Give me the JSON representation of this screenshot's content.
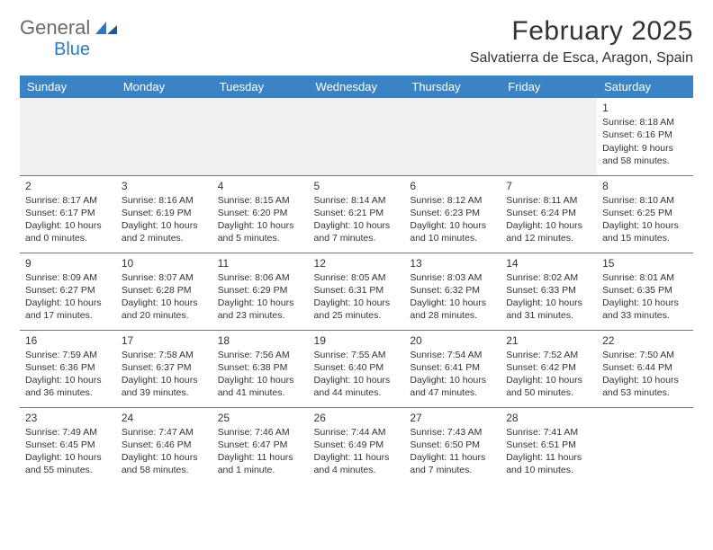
{
  "logo": {
    "text1": "General",
    "text2": "Blue"
  },
  "title": "February 2025",
  "location": "Salvatierra de Esca, Aragon, Spain",
  "colors": {
    "header_bg": "#3a84c6",
    "header_text": "#ffffff",
    "border": "#6b7a87",
    "logo_blue": "#2f78bd",
    "logo_gray": "#6a6a6a",
    "text": "#333333"
  },
  "weekdays": [
    "Sunday",
    "Monday",
    "Tuesday",
    "Wednesday",
    "Thursday",
    "Friday",
    "Saturday"
  ],
  "weeks": [
    [
      null,
      null,
      null,
      null,
      null,
      null,
      {
        "n": "1",
        "sunrise": "Sunrise: 8:18 AM",
        "sunset": "Sunset: 6:16 PM",
        "daylight": "Daylight: 9 hours and 58 minutes."
      }
    ],
    [
      {
        "n": "2",
        "sunrise": "Sunrise: 8:17 AM",
        "sunset": "Sunset: 6:17 PM",
        "daylight": "Daylight: 10 hours and 0 minutes."
      },
      {
        "n": "3",
        "sunrise": "Sunrise: 8:16 AM",
        "sunset": "Sunset: 6:19 PM",
        "daylight": "Daylight: 10 hours and 2 minutes."
      },
      {
        "n": "4",
        "sunrise": "Sunrise: 8:15 AM",
        "sunset": "Sunset: 6:20 PM",
        "daylight": "Daylight: 10 hours and 5 minutes."
      },
      {
        "n": "5",
        "sunrise": "Sunrise: 8:14 AM",
        "sunset": "Sunset: 6:21 PM",
        "daylight": "Daylight: 10 hours and 7 minutes."
      },
      {
        "n": "6",
        "sunrise": "Sunrise: 8:12 AM",
        "sunset": "Sunset: 6:23 PM",
        "daylight": "Daylight: 10 hours and 10 minutes."
      },
      {
        "n": "7",
        "sunrise": "Sunrise: 8:11 AM",
        "sunset": "Sunset: 6:24 PM",
        "daylight": "Daylight: 10 hours and 12 minutes."
      },
      {
        "n": "8",
        "sunrise": "Sunrise: 8:10 AM",
        "sunset": "Sunset: 6:25 PM",
        "daylight": "Daylight: 10 hours and 15 minutes."
      }
    ],
    [
      {
        "n": "9",
        "sunrise": "Sunrise: 8:09 AM",
        "sunset": "Sunset: 6:27 PM",
        "daylight": "Daylight: 10 hours and 17 minutes."
      },
      {
        "n": "10",
        "sunrise": "Sunrise: 8:07 AM",
        "sunset": "Sunset: 6:28 PM",
        "daylight": "Daylight: 10 hours and 20 minutes."
      },
      {
        "n": "11",
        "sunrise": "Sunrise: 8:06 AM",
        "sunset": "Sunset: 6:29 PM",
        "daylight": "Daylight: 10 hours and 23 minutes."
      },
      {
        "n": "12",
        "sunrise": "Sunrise: 8:05 AM",
        "sunset": "Sunset: 6:31 PM",
        "daylight": "Daylight: 10 hours and 25 minutes."
      },
      {
        "n": "13",
        "sunrise": "Sunrise: 8:03 AM",
        "sunset": "Sunset: 6:32 PM",
        "daylight": "Daylight: 10 hours and 28 minutes."
      },
      {
        "n": "14",
        "sunrise": "Sunrise: 8:02 AM",
        "sunset": "Sunset: 6:33 PM",
        "daylight": "Daylight: 10 hours and 31 minutes."
      },
      {
        "n": "15",
        "sunrise": "Sunrise: 8:01 AM",
        "sunset": "Sunset: 6:35 PM",
        "daylight": "Daylight: 10 hours and 33 minutes."
      }
    ],
    [
      {
        "n": "16",
        "sunrise": "Sunrise: 7:59 AM",
        "sunset": "Sunset: 6:36 PM",
        "daylight": "Daylight: 10 hours and 36 minutes."
      },
      {
        "n": "17",
        "sunrise": "Sunrise: 7:58 AM",
        "sunset": "Sunset: 6:37 PM",
        "daylight": "Daylight: 10 hours and 39 minutes."
      },
      {
        "n": "18",
        "sunrise": "Sunrise: 7:56 AM",
        "sunset": "Sunset: 6:38 PM",
        "daylight": "Daylight: 10 hours and 41 minutes."
      },
      {
        "n": "19",
        "sunrise": "Sunrise: 7:55 AM",
        "sunset": "Sunset: 6:40 PM",
        "daylight": "Daylight: 10 hours and 44 minutes."
      },
      {
        "n": "20",
        "sunrise": "Sunrise: 7:54 AM",
        "sunset": "Sunset: 6:41 PM",
        "daylight": "Daylight: 10 hours and 47 minutes."
      },
      {
        "n": "21",
        "sunrise": "Sunrise: 7:52 AM",
        "sunset": "Sunset: 6:42 PM",
        "daylight": "Daylight: 10 hours and 50 minutes."
      },
      {
        "n": "22",
        "sunrise": "Sunrise: 7:50 AM",
        "sunset": "Sunset: 6:44 PM",
        "daylight": "Daylight: 10 hours and 53 minutes."
      }
    ],
    [
      {
        "n": "23",
        "sunrise": "Sunrise: 7:49 AM",
        "sunset": "Sunset: 6:45 PM",
        "daylight": "Daylight: 10 hours and 55 minutes."
      },
      {
        "n": "24",
        "sunrise": "Sunrise: 7:47 AM",
        "sunset": "Sunset: 6:46 PM",
        "daylight": "Daylight: 10 hours and 58 minutes."
      },
      {
        "n": "25",
        "sunrise": "Sunrise: 7:46 AM",
        "sunset": "Sunset: 6:47 PM",
        "daylight": "Daylight: 11 hours and 1 minute."
      },
      {
        "n": "26",
        "sunrise": "Sunrise: 7:44 AM",
        "sunset": "Sunset: 6:49 PM",
        "daylight": "Daylight: 11 hours and 4 minutes."
      },
      {
        "n": "27",
        "sunrise": "Sunrise: 7:43 AM",
        "sunset": "Sunset: 6:50 PM",
        "daylight": "Daylight: 11 hours and 7 minutes."
      },
      {
        "n": "28",
        "sunrise": "Sunrise: 7:41 AM",
        "sunset": "Sunset: 6:51 PM",
        "daylight": "Daylight: 11 hours and 10 minutes."
      },
      null
    ]
  ]
}
